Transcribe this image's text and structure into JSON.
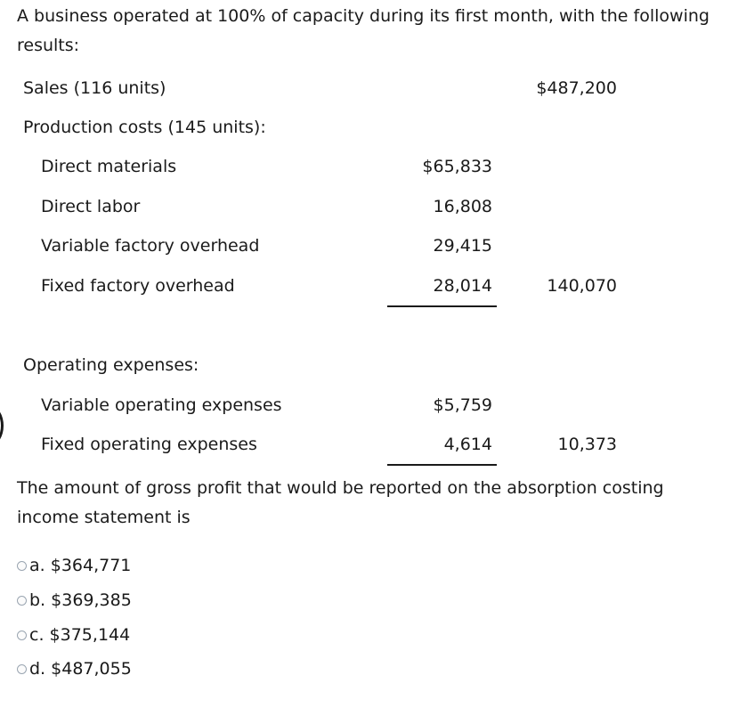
{
  "question": {
    "intro": "A business operated at 100% of capacity during its first month, with the following results:",
    "prompt": "The amount of gross profit that would be reported on the absorption costing income statement is"
  },
  "statement": {
    "sales": {
      "label": "Sales (116 units)",
      "total": "$487,200"
    },
    "production_costs": {
      "label": "Production costs (145 units):",
      "items": [
        {
          "label": "Direct materials",
          "amount": "$65,833"
        },
        {
          "label": "Direct labor",
          "amount": "16,808"
        },
        {
          "label": "Variable factory overhead",
          "amount": "29,415"
        },
        {
          "label": "Fixed factory overhead",
          "amount": "28,014"
        }
      ],
      "total": "140,070"
    },
    "operating_expenses": {
      "label": "Operating expenses:",
      "items": [
        {
          "label": "Variable operating expenses",
          "amount": "$5,759"
        },
        {
          "label": "Fixed operating expenses",
          "amount": "4,614"
        }
      ],
      "total": "10,373"
    }
  },
  "options": [
    {
      "letter": "a.",
      "text": "$364,771"
    },
    {
      "letter": "b.",
      "text": "$369,385"
    },
    {
      "letter": "c.",
      "text": "$375,144"
    },
    {
      "letter": "d.",
      "text": "$487,055"
    }
  ]
}
